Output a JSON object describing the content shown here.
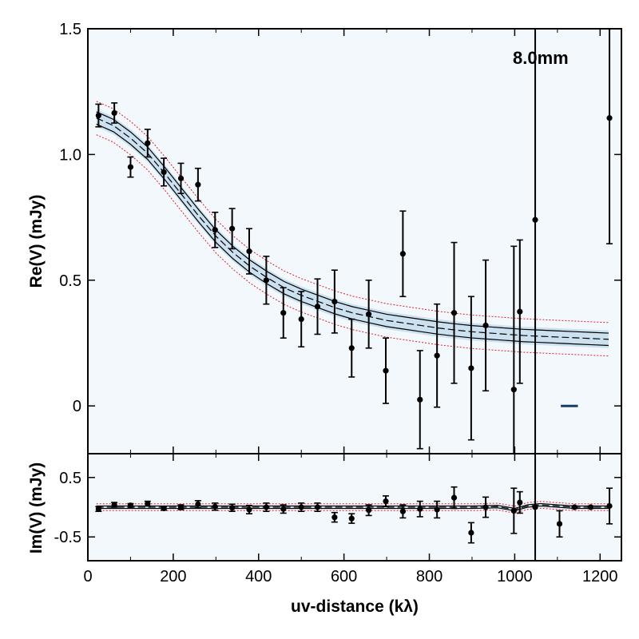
{
  "chart_data": {
    "type": "scatter",
    "annotation": "8.0mm",
    "xlabel": "uv-distance (kλ)",
    "xlim": [
      0,
      1250
    ],
    "x_ticks": [
      "0",
      "200",
      "400",
      "600",
      "800",
      "1000",
      "1200"
    ],
    "colors": {
      "background": "#f3f8fd",
      "model_band": "#a9cde6",
      "confidence": "#e0202a",
      "data": "#000000",
      "dash_marker": "#1a3a66"
    },
    "panels": [
      {
        "name": "real",
        "ylabel": "Re(V) (mJy)",
        "ylim": [
          -0.19,
          1.5
        ],
        "y_ticks": [
          {
            "value": 1.5,
            "label": "1.5"
          },
          {
            "value": 1.0,
            "label": "1.0"
          },
          {
            "value": 0.5,
            "label": "0.5"
          },
          {
            "value": 0.0,
            "label": "0"
          }
        ],
        "points": [
          {
            "x": 25,
            "y": 1.155,
            "err": 0.045
          },
          {
            "x": 62,
            "y": 1.165,
            "err": 0.04
          },
          {
            "x": 100,
            "y": 0.95,
            "err": 0.04
          },
          {
            "x": 140,
            "y": 1.045,
            "err": 0.055
          },
          {
            "x": 178,
            "y": 0.93,
            "err": 0.055
          },
          {
            "x": 218,
            "y": 0.905,
            "err": 0.06
          },
          {
            "x": 258,
            "y": 0.88,
            "err": 0.065
          },
          {
            "x": 298,
            "y": 0.7,
            "err": 0.07
          },
          {
            "x": 338,
            "y": 0.705,
            "err": 0.08
          },
          {
            "x": 378,
            "y": 0.615,
            "err": 0.09
          },
          {
            "x": 418,
            "y": 0.5,
            "err": 0.095
          },
          {
            "x": 458,
            "y": 0.37,
            "err": 0.1
          },
          {
            "x": 500,
            "y": 0.345,
            "err": 0.11
          },
          {
            "x": 538,
            "y": 0.395,
            "err": 0.11
          },
          {
            "x": 578,
            "y": 0.415,
            "err": 0.125
          },
          {
            "x": 618,
            "y": 0.23,
            "err": 0.115
          },
          {
            "x": 658,
            "y": 0.365,
            "err": 0.135
          },
          {
            "x": 698,
            "y": 0.14,
            "err": 0.13
          },
          {
            "x": 738,
            "y": 0.605,
            "err": 0.17
          },
          {
            "x": 778,
            "y": 0.025,
            "err": 0.195
          },
          {
            "x": 818,
            "y": 0.2,
            "err": 0.205
          },
          {
            "x": 858,
            "y": 0.37,
            "err": 0.28
          },
          {
            "x": 898,
            "y": 0.15,
            "err": 0.285
          },
          {
            "x": 932,
            "y": 0.32,
            "err": 0.26
          },
          {
            "x": 998,
            "y": 0.065,
            "err": 0.57
          },
          {
            "x": 1012,
            "y": 0.375,
            "err": 0.285
          },
          {
            "x": 1048,
            "y": 0.74,
            "err": 1.4
          },
          {
            "x": 1222,
            "y": 1.145,
            "err": 0.5
          }
        ],
        "model": [
          [
            20,
            1.145
          ],
          [
            60,
            1.115
          ],
          [
            100,
            1.065
          ],
          [
            140,
            1.005
          ],
          [
            180,
            0.925
          ],
          [
            220,
            0.84
          ],
          [
            260,
            0.755
          ],
          [
            300,
            0.675
          ],
          [
            340,
            0.61
          ],
          [
            380,
            0.555
          ],
          [
            420,
            0.51
          ],
          [
            460,
            0.47
          ],
          [
            500,
            0.44
          ],
          [
            540,
            0.415
          ],
          [
            580,
            0.39
          ],
          [
            620,
            0.37
          ],
          [
            660,
            0.355
          ],
          [
            700,
            0.34
          ],
          [
            740,
            0.33
          ],
          [
            780,
            0.32
          ],
          [
            820,
            0.31
          ],
          [
            860,
            0.302
          ],
          [
            900,
            0.295
          ],
          [
            940,
            0.29
          ],
          [
            980,
            0.285
          ],
          [
            1020,
            0.28
          ],
          [
            1060,
            0.277
          ],
          [
            1100,
            0.274
          ],
          [
            1140,
            0.271
          ],
          [
            1180,
            0.268
          ],
          [
            1220,
            0.265
          ]
        ],
        "model_uncertainty": 0.035,
        "dash_marker": {
          "x0": 1108,
          "x1": 1148,
          "y": 0.0
        }
      },
      {
        "name": "imag",
        "ylabel": "Im(V) (mJy)",
        "ylim": [
          -0.9,
          0.9
        ],
        "y_ticks": [
          {
            "value": 0.5,
            "label": "0.5"
          },
          {
            "value": -0.5,
            "label": "-0.5"
          }
        ],
        "points": [
          {
            "x": 25,
            "y": -0.03,
            "err": 0.04
          },
          {
            "x": 62,
            "y": 0.04,
            "err": 0.04
          },
          {
            "x": 100,
            "y": 0.03,
            "err": 0.03
          },
          {
            "x": 140,
            "y": 0.06,
            "err": 0.04
          },
          {
            "x": 178,
            "y": -0.02,
            "err": 0.03
          },
          {
            "x": 218,
            "y": 0.0,
            "err": 0.04
          },
          {
            "x": 258,
            "y": 0.05,
            "err": 0.06
          },
          {
            "x": 298,
            "y": 0.01,
            "err": 0.06
          },
          {
            "x": 338,
            "y": -0.01,
            "err": 0.06
          },
          {
            "x": 378,
            "y": -0.04,
            "err": 0.07
          },
          {
            "x": 418,
            "y": 0.0,
            "err": 0.07
          },
          {
            "x": 458,
            "y": -0.03,
            "err": 0.07
          },
          {
            "x": 500,
            "y": 0.0,
            "err": 0.07
          },
          {
            "x": 538,
            "y": 0.0,
            "err": 0.07
          },
          {
            "x": 578,
            "y": -0.17,
            "err": 0.08
          },
          {
            "x": 618,
            "y": -0.19,
            "err": 0.08
          },
          {
            "x": 658,
            "y": -0.05,
            "err": 0.09
          },
          {
            "x": 698,
            "y": 0.1,
            "err": 0.09
          },
          {
            "x": 738,
            "y": -0.07,
            "err": 0.11
          },
          {
            "x": 778,
            "y": -0.03,
            "err": 0.13
          },
          {
            "x": 818,
            "y": -0.04,
            "err": 0.14
          },
          {
            "x": 858,
            "y": 0.16,
            "err": 0.18
          },
          {
            "x": 898,
            "y": -0.43,
            "err": 0.17
          },
          {
            "x": 932,
            "y": 0.0,
            "err": 0.17
          },
          {
            "x": 998,
            "y": -0.06,
            "err": 0.38
          },
          {
            "x": 1012,
            "y": 0.08,
            "err": 0.18
          },
          {
            "x": 1048,
            "y": 0.0,
            "err": 1.2
          },
          {
            "x": 1105,
            "y": -0.28,
            "err": 0.22
          },
          {
            "x": 1140,
            "y": 0.0,
            "err": 0.02
          },
          {
            "x": 1178,
            "y": 0.0,
            "err": 0.02
          },
          {
            "x": 1222,
            "y": 0.02,
            "err": 0.3
          }
        ],
        "model": [
          [
            20,
            0.0
          ],
          [
            300,
            0.0
          ],
          [
            600,
            0.0
          ],
          [
            900,
            0.0
          ],
          [
            960,
            0.01
          ],
          [
            1000,
            -0.04
          ],
          [
            1030,
            0.02
          ],
          [
            1060,
            0.04
          ],
          [
            1100,
            0.02
          ],
          [
            1140,
            0.0
          ],
          [
            1180,
            0.0
          ],
          [
            1220,
            0.0
          ]
        ],
        "model_uncertainty": 0.03
      }
    ]
  }
}
